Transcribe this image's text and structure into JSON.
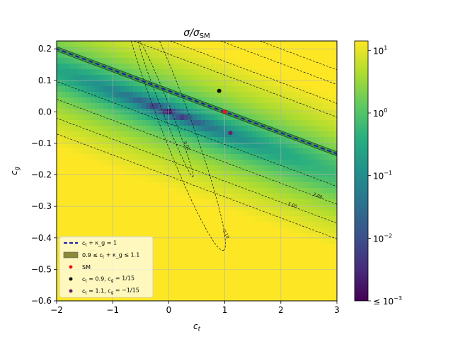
{
  "chart_data": {
    "type": "heatmap",
    "title": "σ/σ_SM",
    "xlabel": "c_t",
    "ylabel": "c_g",
    "xlim": [
      -2,
      3
    ],
    "ylim": [
      -0.6,
      0.225
    ],
    "x_ticks": [
      "−2",
      "−1",
      "0",
      "1",
      "2",
      "3"
    ],
    "x_tick_values": [
      -2,
      -1,
      0,
      1,
      2,
      3
    ],
    "y_ticks": [
      "−0.6",
      "−0.5",
      "−0.4",
      "−0.3",
      "−0.2",
      "−0.1",
      "0.0",
      "0.1",
      "0.2"
    ],
    "y_tick_values": [
      -0.6,
      -0.5,
      -0.4,
      -0.3,
      -0.2,
      -0.1,
      0.0,
      0.1,
      0.2
    ],
    "grid": true,
    "colorscale": "viridis",
    "color_scale_type": "log",
    "colorbar_ticks": [
      {
        "label": "10",
        "exp": "1",
        "value": 10
      },
      {
        "label": "10",
        "exp": "0",
        "value": 1
      },
      {
        "label": "10",
        "exp": "−1",
        "value": 0.1
      },
      {
        "label": "10",
        "exp": "−2",
        "value": 0.01
      },
      {
        "label": "≤ 10",
        "exp": "−3",
        "value": 0.001
      }
    ],
    "contour_levels": [
      {
        "value": 0.01,
        "label": "0.01"
      },
      {
        "value": 0.1,
        "label": "0.10"
      },
      {
        "value": 1.0,
        "label": "1.00"
      },
      {
        "value": 2.0,
        "label": "2.00"
      },
      {
        "value": 5.0,
        "label": "5.00"
      },
      {
        "value": 9.0,
        "label": "9.00"
      }
    ],
    "band": {
      "lower": 0.9,
      "upper": 1.1,
      "color": "#2e7d32"
    },
    "line": {
      "color": "#1a1aa6"
    },
    "points": [
      {
        "name": "SM",
        "x": 1.0,
        "y": 0.0,
        "color": "#e8141e"
      },
      {
        "name": "ct=0.9, cg=1/15",
        "x": 0.9,
        "y": 0.0667,
        "color": "#111111"
      },
      {
        "name": "ct=1.1, cg=-1/15",
        "x": 1.1,
        "y": -0.0667,
        "color": "#6b1f6b"
      }
    ],
    "legend": {
      "placement": "lower-left",
      "entries": [
        {
          "key": "line",
          "text": "c_t + κ_g = 1"
        },
        {
          "key": "band",
          "text": "0.9 ≤ c_t + κ_g ≤ 1.1"
        },
        {
          "key": "sm",
          "text": "SM"
        },
        {
          "key": "p1",
          "text": "c_t = 0.9, c_g = 1/15"
        },
        {
          "key": "p2",
          "text": "c_t = 1.1, c_g = −1/15"
        }
      ]
    }
  }
}
